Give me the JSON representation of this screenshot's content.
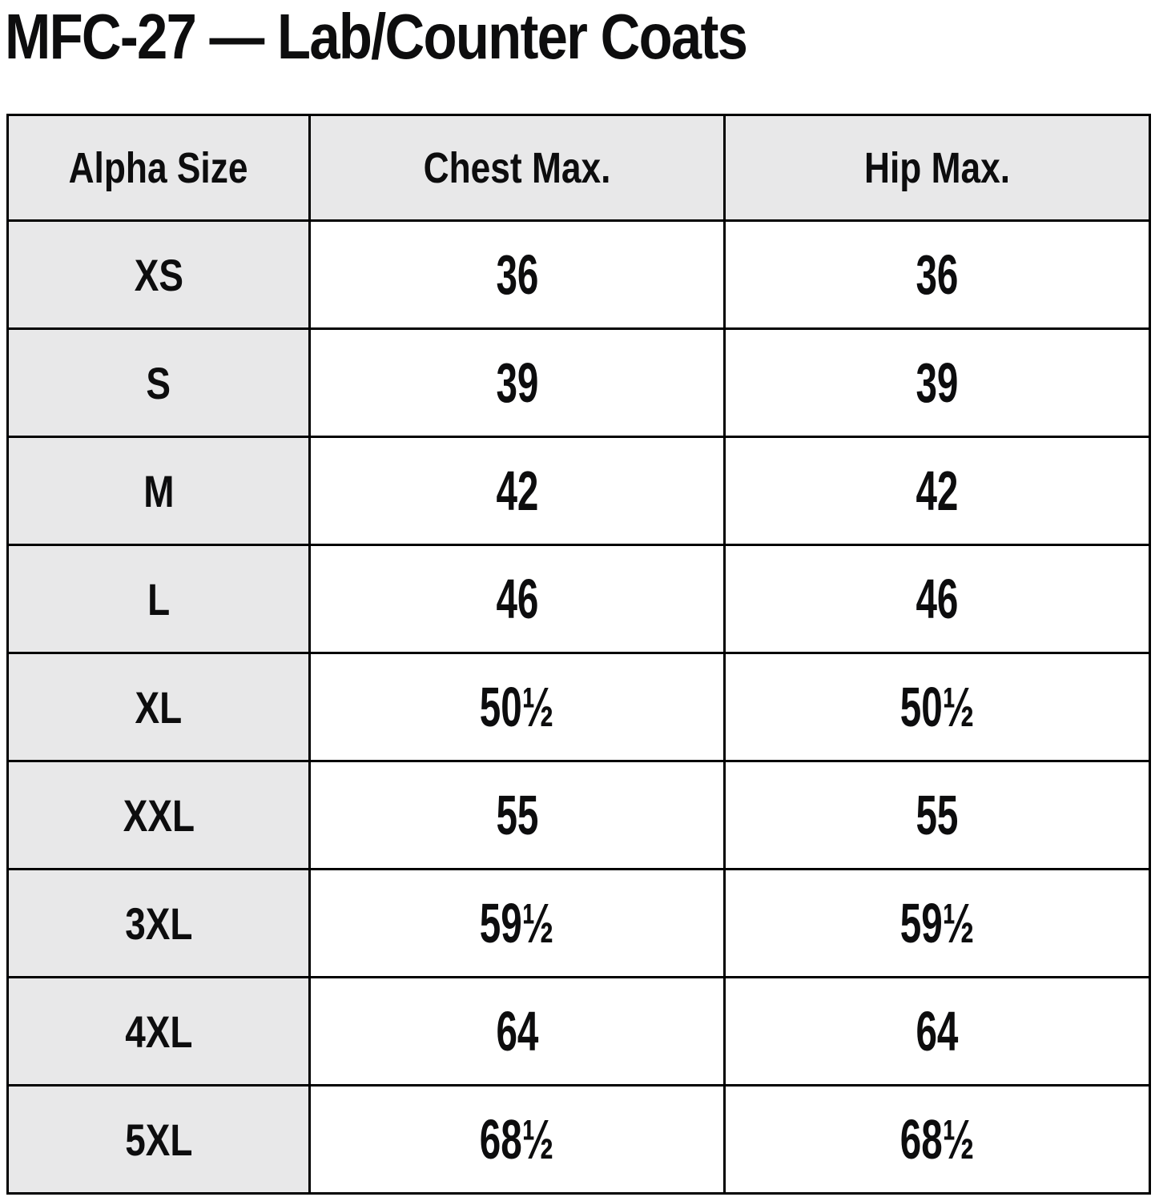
{
  "page": {
    "title": "MFC-27 — Lab/Counter Coats"
  },
  "table": {
    "headers": [
      "Alpha Size",
      "Chest Max.",
      "Hip Max."
    ],
    "rows": [
      {
        "size": "XS",
        "chest": "36",
        "hip": "36"
      },
      {
        "size": "S",
        "chest": "39",
        "hip": "39"
      },
      {
        "size": "M",
        "chest": "42",
        "hip": "42"
      },
      {
        "size": "L",
        "chest": "46",
        "hip": "46"
      },
      {
        "size": "XL",
        "chest": "50½",
        "hip": "50½"
      },
      {
        "size": "XXL",
        "chest": "55",
        "hip": "55"
      },
      {
        "size": "3XL",
        "chest": "59½",
        "hip": "59½"
      },
      {
        "size": "4XL",
        "chest": "64",
        "hip": "64"
      },
      {
        "size": "5XL",
        "chest": "68½",
        "hip": "68½"
      }
    ],
    "colors": {
      "header_bg": "#e8e8e9",
      "row_label_bg": "#e8e8e9",
      "cell_bg": "#ffffff",
      "border": "#000000",
      "text": "#0d0d0e"
    }
  }
}
